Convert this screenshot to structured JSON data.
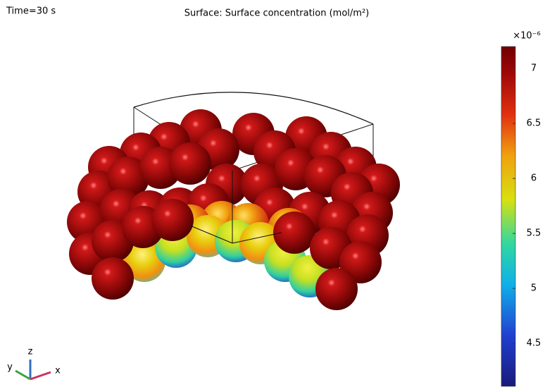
{
  "chart_data": {
    "type": "surface3d",
    "title": "Surface: Surface concentration (mol/m²)",
    "time_label": "Time=30 s",
    "colorbar": {
      "multiplier": "×10⁻⁶",
      "lim": [
        4.11,
        7.2
      ],
      "ticks": [
        4.5,
        5,
        5.5,
        6,
        6.5,
        7
      ]
    },
    "axes": {
      "x": "x",
      "y": "y",
      "z": "z"
    }
  }
}
